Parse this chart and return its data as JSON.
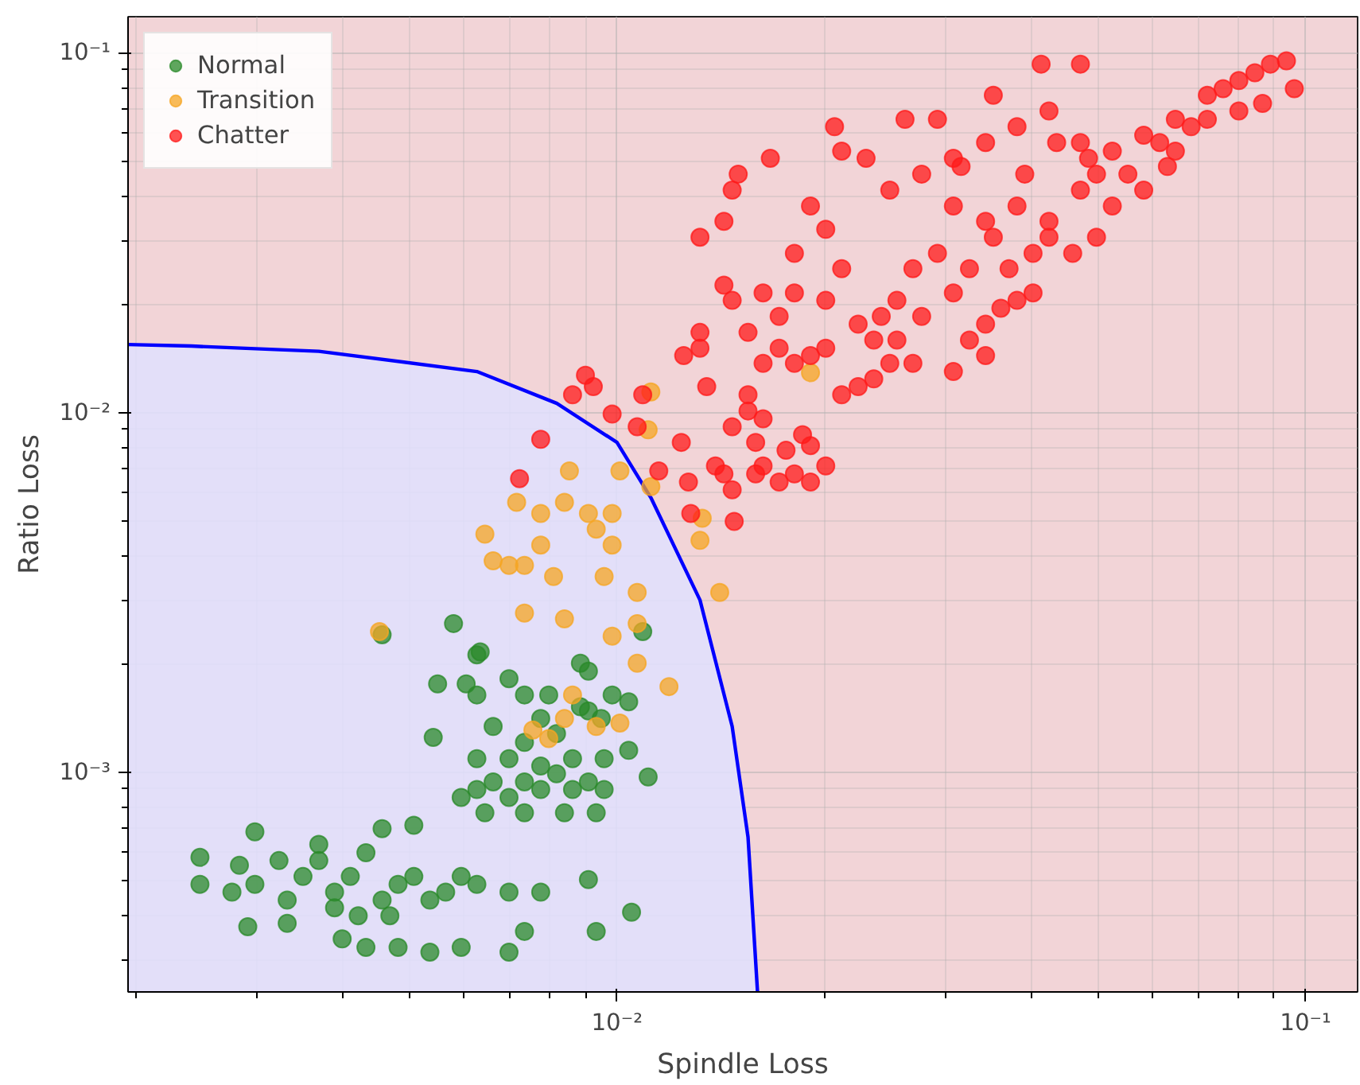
{
  "chart_data": {
    "type": "scatter",
    "xlabel": "Spindle Loss",
    "ylabel": "Ratio Loss",
    "log": "xy",
    "grid": true,
    "legend": "top left",
    "marker": "circle",
    "xlim": [
      0.00195,
      0.119
    ],
    "ylim": [
      0.000245,
      0.126
    ],
    "xticks": [
      {
        "value": 0.01,
        "label": "10⁻²"
      },
      {
        "value": 0.1,
        "label": "10⁻¹"
      }
    ],
    "yticks": [
      {
        "value": 0.001,
        "label": "10⁻³"
      },
      {
        "value": 0.01,
        "label": "10⁻²"
      },
      {
        "value": 0.1,
        "label": "10⁻¹"
      }
    ],
    "series": [
      {
        "type": "area",
        "marker": "none",
        "color": "#0000ff",
        "x": [
          0.00195,
          0.00241,
          0.00369,
          0.00626,
          0.00818,
          0.01,
          0.0112,
          0.0132,
          0.0147,
          0.0155,
          0.016
        ],
        "values": [
          0.01545,
          0.0153,
          0.0148,
          0.013,
          0.0106,
          0.00826,
          0.0058,
          0.00301,
          0.00134,
          0.00066,
          0.000245
        ]
      },
      {
        "name": "Normal",
        "color": "#2a8a2a",
        "x": [
          0.00248,
          0.00248,
          0.00283,
          0.00298,
          0.00298,
          0.00291,
          0.00332,
          0.0035,
          0.00369,
          0.00389,
          0.0041,
          0.00432,
          0.00456,
          0.00481,
          0.00507,
          0.00535,
          0.00564,
          0.00594,
          0.00626,
          0.00399,
          0.00432,
          0.00481,
          0.00535,
          0.00594,
          0.00697,
          0.00456,
          0.00507,
          0.00369,
          0.00323,
          0.00389,
          0.00421,
          0.00468,
          0.00697,
          0.00775,
          0.00734,
          0.00909,
          0.00933,
          0.0105,
          0.00332,
          0.00276,
          0.00594,
          0.00626,
          0.00661,
          0.00697,
          0.00734,
          0.00775,
          0.00817,
          0.00862,
          0.00909,
          0.00958,
          0.00626,
          0.00697,
          0.00775,
          0.00862,
          0.00958,
          0.00643,
          0.00734,
          0.00839,
          0.00933,
          0.00661,
          0.00734,
          0.00817,
          0.00909,
          0.00885,
          0.00796,
          0.00734,
          0.00626,
          0.00697,
          0.00626,
          0.00579,
          0.00633,
          0.00456,
          0.00541,
          0.00549,
          0.00604,
          0.0104,
          0.0109,
          0.00885,
          0.0111,
          0.0104,
          0.00909,
          0.00984,
          0.00949,
          0.00775
        ],
        "values": [
          0.00058,
          0.000488,
          0.000551,
          0.000683,
          0.000488,
          0.000372,
          0.000441,
          0.000513,
          0.000568,
          0.000464,
          0.000513,
          0.000597,
          0.000441,
          0.000488,
          0.000513,
          0.000441,
          0.000464,
          0.000513,
          0.000488,
          0.000344,
          0.000326,
          0.000326,
          0.000316,
          0.000326,
          0.000316,
          0.000697,
          0.000712,
          0.00063,
          0.000568,
          0.00042,
          0.000399,
          0.000399,
          0.000464,
          0.000464,
          0.000361,
          0.000503,
          0.000361,
          0.000408,
          0.00038,
          0.000464,
          0.000851,
          0.000895,
          0.00094,
          0.000851,
          0.00094,
          0.000895,
          0.00099,
          0.000895,
          0.00094,
          0.000895,
          0.00109,
          0.00109,
          0.00104,
          0.00109,
          0.00109,
          0.000771,
          0.000771,
          0.000771,
          0.000771,
          0.00134,
          0.00121,
          0.00128,
          0.00148,
          0.00201,
          0.00164,
          0.00164,
          0.00164,
          0.00182,
          0.00212,
          0.00259,
          0.00216,
          0.00241,
          0.00125,
          0.00176,
          0.00176,
          0.00157,
          0.00246,
          0.00152,
          0.00097,
          0.00115,
          0.00191,
          0.00164,
          0.00141,
          0.00141
        ]
      },
      {
        "name": "Transition",
        "color": "#f5a623",
        "x": [
          0.00452,
          0.00643,
          0.00715,
          0.00775,
          0.00775,
          0.00839,
          0.00909,
          0.00984,
          0.0101,
          0.00853,
          0.00809,
          0.00734,
          0.00697,
          0.00661,
          0.00734,
          0.00839,
          0.00984,
          0.0107,
          0.0107,
          0.00984,
          0.00933,
          0.00958,
          0.00839,
          0.00755,
          0.00796,
          0.00862,
          0.00933,
          0.0101,
          0.0119,
          0.0111,
          0.0112,
          0.0132,
          0.0141,
          0.0133,
          0.0191,
          0.0112,
          0.0107
        ],
        "values": [
          0.00246,
          0.00459,
          0.00563,
          0.00524,
          0.00428,
          0.00563,
          0.00524,
          0.00524,
          0.00688,
          0.00688,
          0.0035,
          0.00376,
          0.00376,
          0.00387,
          0.00277,
          0.00267,
          0.00239,
          0.00259,
          0.00316,
          0.00428,
          0.00474,
          0.0035,
          0.00141,
          0.00131,
          0.00124,
          0.00164,
          0.00134,
          0.00137,
          0.00173,
          0.00895,
          0.00622,
          0.00441,
          0.00316,
          0.00508,
          0.0129,
          0.0114,
          0.00201
        ]
      },
      {
        "name": "Chatter",
        "color": "#ff1a1a",
        "x": [
          0.00775,
          0.00722,
          0.009,
          0.00924,
          0.00862,
          0.0109,
          0.00984,
          0.0107,
          0.0115,
          0.0124,
          0.0125,
          0.0132,
          0.0127,
          0.0128,
          0.0139,
          0.0143,
          0.0147,
          0.0148,
          0.0159,
          0.0163,
          0.0172,
          0.0181,
          0.0191,
          0.0201,
          0.0176,
          0.0186,
          0.0191,
          0.0147,
          0.0155,
          0.0159,
          0.0163,
          0.0155,
          0.0163,
          0.0172,
          0.0181,
          0.0191,
          0.0201,
          0.0212,
          0.0224,
          0.0236,
          0.0249,
          0.0155,
          0.0172,
          0.0181,
          0.0201,
          0.0224,
          0.0236,
          0.0255,
          0.0269,
          0.0277,
          0.0255,
          0.0308,
          0.0325,
          0.0343,
          0.0361,
          0.0381,
          0.0402,
          0.0308,
          0.0343,
          0.0371,
          0.0402,
          0.0424,
          0.0459,
          0.0497,
          0.0524,
          0.0471,
          0.0424,
          0.0381,
          0.0343,
          0.0308,
          0.0316,
          0.0343,
          0.0381,
          0.0424,
          0.0471,
          0.0524,
          0.0582,
          0.0647,
          0.072,
          0.0759,
          0.08,
          0.0844,
          0.0889,
          0.0938,
          0.0963,
          0.0682,
          0.0614,
          0.072,
          0.0552,
          0.0582,
          0.0497,
          0.0143,
          0.0147,
          0.015,
          0.0167,
          0.0207,
          0.0212,
          0.023,
          0.0249,
          0.0262,
          0.0277,
          0.0292,
          0.0308,
          0.0143,
          0.0132,
          0.0132,
          0.0135,
          0.0191,
          0.0201,
          0.0242,
          0.0292,
          0.0325,
          0.0352,
          0.0391,
          0.0435,
          0.0484,
          0.0181,
          0.0212,
          0.0269,
          0.0147,
          0.0163,
          0.0352,
          0.0413,
          0.0471,
          0.063,
          0.0647,
          0.08,
          0.0866
        ],
        "values": [
          0.00842,
          0.00655,
          0.0127,
          0.0118,
          0.0112,
          0.0112,
          0.0099,
          0.00913,
          0.00688,
          0.00826,
          0.0144,
          0.0151,
          0.00641,
          0.00524,
          0.0071,
          0.00675,
          0.0061,
          0.00498,
          0.00675,
          0.0071,
          0.00641,
          0.00675,
          0.00641,
          0.0071,
          0.00785,
          0.00868,
          0.00809,
          0.00913,
          0.0101,
          0.00826,
          0.00961,
          0.0112,
          0.0137,
          0.0151,
          0.0137,
          0.0144,
          0.0151,
          0.0112,
          0.0118,
          0.0124,
          0.0137,
          0.0167,
          0.0185,
          0.0215,
          0.0205,
          0.0176,
          0.0159,
          0.0159,
          0.0137,
          0.0185,
          0.0205,
          0.0215,
          0.0159,
          0.0176,
          0.0195,
          0.0205,
          0.0215,
          0.013,
          0.0144,
          0.0251,
          0.0277,
          0.0307,
          0.0277,
          0.0307,
          0.0375,
          0.0415,
          0.034,
          0.0375,
          0.034,
          0.0375,
          0.0483,
          0.0563,
          0.0623,
          0.0689,
          0.0563,
          0.0533,
          0.059,
          0.0653,
          0.0762,
          0.0795,
          0.0837,
          0.088,
          0.093,
          0.095,
          0.0795,
          0.0623,
          0.0563,
          0.0653,
          0.046,
          0.0415,
          0.046,
          0.034,
          0.0415,
          0.046,
          0.0509,
          0.0623,
          0.0533,
          0.0509,
          0.0415,
          0.0653,
          0.046,
          0.0653,
          0.0509,
          0.0226,
          0.0307,
          0.0167,
          0.0118,
          0.0375,
          0.0323,
          0.0185,
          0.0277,
          0.0251,
          0.0307,
          0.046,
          0.0563,
          0.0509,
          0.0277,
          0.0251,
          0.0251,
          0.0205,
          0.0215,
          0.0762,
          0.093,
          0.093,
          0.0483,
          0.0533,
          0.0689,
          0.0723
        ]
      }
    ]
  }
}
